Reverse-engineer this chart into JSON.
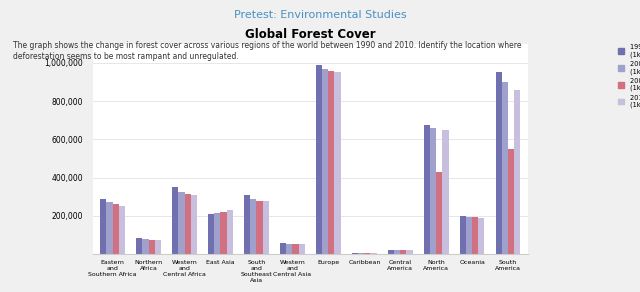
{
  "title": "Global Forest Cover",
  "categories": [
    "Eastern\nand\nSouthern Africa",
    "Northern\nAfrica",
    "Western\nand\nCentral Africa",
    "East Asia",
    "South\nand\nSoutheast\nAsia",
    "Western\nand\nCentral Asia",
    "Europe",
    "Caribbean",
    "Central\nAmerica",
    "North\nAmerica",
    "Oceania",
    "South\nAmerica"
  ],
  "series": {
    "1990 Value\n(1k Ha)": [
      290000,
      85000,
      350000,
      208000,
      310000,
      60000,
      989000,
      5000,
      22000,
      677000,
      198000,
      950000
    ],
    "2000 Value\n(1k Ha)": [
      270000,
      78000,
      325000,
      215000,
      290000,
      55000,
      970000,
      5500,
      22000,
      660000,
      194000,
      900000
    ],
    "2005 Value\n(1k Ha)": [
      260000,
      75000,
      315000,
      220000,
      280000,
      52000,
      960000,
      6000,
      21000,
      430000,
      192000,
      550000
    ],
    "2010 Value\n(1k Ha)": [
      250000,
      72000,
      310000,
      230000,
      275000,
      50000,
      950000,
      6500,
      20000,
      650000,
      191000,
      860000
    ]
  },
  "colors": {
    "1990 Value\n(1k Ha)": "#7070b0",
    "2000 Value\n(1k Ha)": "#a0a0cc",
    "2005 Value\n(1k Ha)": "#d07080",
    "2010 Value\n(1k Ha)": "#c8bedd"
  },
  "ylim": [
    0,
    1100000
  ],
  "yticks": [
    0,
    200000,
    400000,
    600000,
    800000,
    1000000
  ],
  "ytick_labels": [
    "",
    "200,000",
    "400,000",
    "600,000",
    "800,000",
    "1,000,000"
  ],
  "nav_bg": "#4a90c4",
  "nav_text": "Pretest: Environmental Studies",
  "body_text": "The graph shows the change in forest cover across various regions of the world between 1990 and 2010. Identify the location where\ndeforestation seems to be most rampant and unregulated.",
  "chart_bg": "#f5f5f5"
}
